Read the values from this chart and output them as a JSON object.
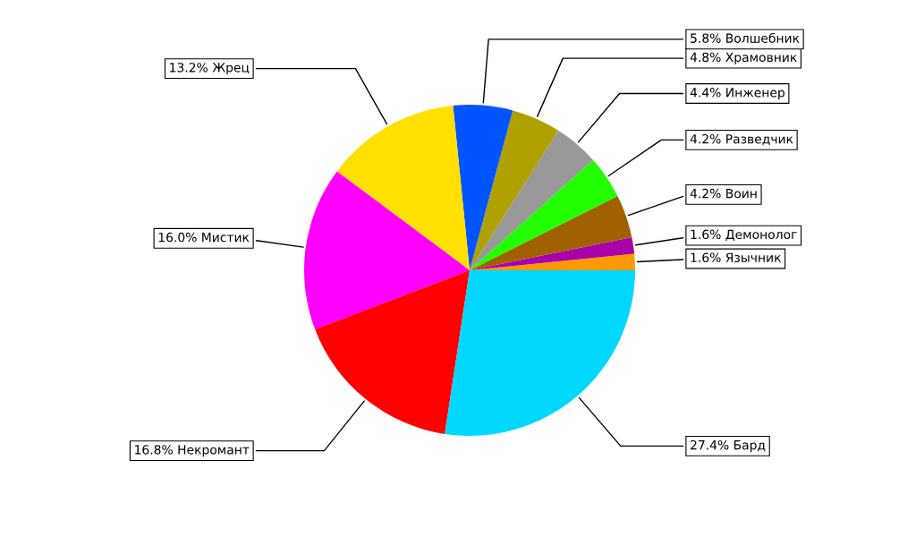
{
  "chart_data": {
    "type": "pie",
    "categories": [
      "Язычник",
      "Демонолог",
      "Воин",
      "Разведчик",
      "Инженер",
      "Храмовник",
      "Волшебник",
      "Жрец",
      "Мистик",
      "Некромант",
      "Бард"
    ],
    "values": [
      1.6,
      1.6,
      4.2,
      4.2,
      4.4,
      4.8,
      5.8,
      13.2,
      16.0,
      16.8,
      27.4
    ],
    "value_labels": [
      "1.6%",
      "1.6%",
      "4.2%",
      "4.2%",
      "4.4%",
      "4.8%",
      "5.8%",
      "13.2%",
      "16.0%",
      "16.8%",
      "27.4%"
    ],
    "colors": [
      "#ff9900",
      "#aa00aa",
      "#a06000",
      "#22ff00",
      "#999999",
      "#b0a000",
      "#0055ff",
      "#ffe000",
      "#ff00ff",
      "#ff0000",
      "#00d8ff"
    ],
    "legend": false
  }
}
